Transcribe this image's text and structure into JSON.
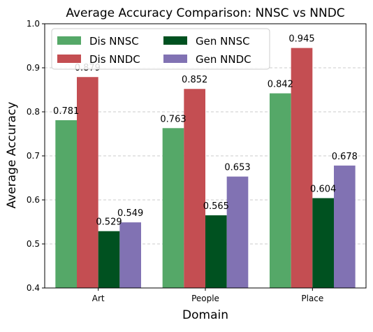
{
  "chart_data": {
    "type": "bar",
    "title": "Average Accuracy Comparison: NNSC vs NNDC",
    "xlabel": "Domain",
    "ylabel": "Average Accuracy",
    "categories": [
      "Art",
      "People",
      "Place"
    ],
    "ylim": [
      0.4,
      1.0
    ],
    "yticks": [
      "0.4",
      "0.5",
      "0.6",
      "0.7",
      "0.8",
      "0.9",
      "1.0"
    ],
    "grid": "y-dashed",
    "legend_placement": "top-left",
    "series": [
      {
        "name": "Dis NNSC",
        "color": "#55a868",
        "values": [
          0.781,
          0.763,
          0.842
        ],
        "labels": [
          "0.781",
          "0.763",
          "0.842"
        ]
      },
      {
        "name": "Dis NNDC",
        "color": "#c44e52",
        "values": [
          0.879,
          0.852,
          0.945
        ],
        "labels": [
          "0.879",
          "0.852",
          "0.945"
        ]
      },
      {
        "name": "Gen NNSC",
        "color": "#005120",
        "values": [
          0.529,
          0.565,
          0.604
        ],
        "labels": [
          "0.529",
          "0.565",
          "0.604"
        ]
      },
      {
        "name": "Gen NNDC",
        "color": "#8172b3",
        "values": [
          0.549,
          0.653,
          0.678
        ],
        "labels": [
          "0.549",
          "0.653",
          "0.678"
        ]
      }
    ]
  }
}
